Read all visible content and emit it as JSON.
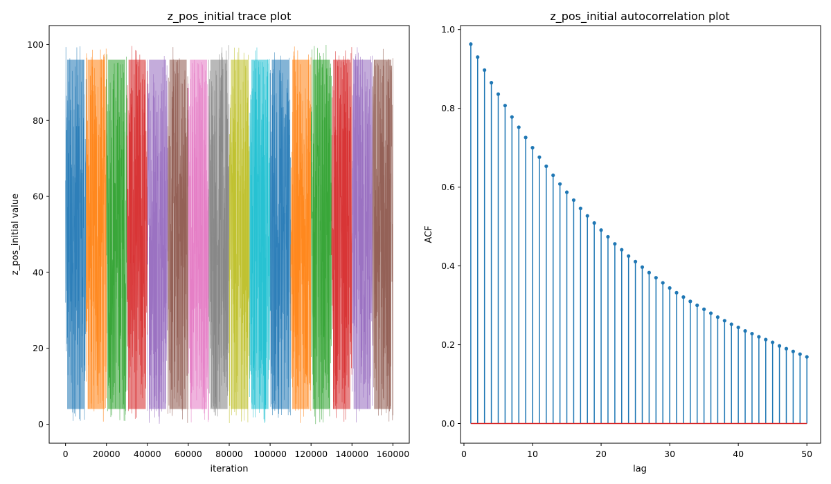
{
  "chart_data": [
    {
      "type": "line",
      "title": "z_pos_initial trace plot",
      "xlabel": "iteration",
      "ylabel": "z_pos_initial value",
      "xlim": [
        -8000,
        168000
      ],
      "ylim": [
        -5,
        105
      ],
      "xticks": [
        0,
        20000,
        40000,
        60000,
        80000,
        100000,
        120000,
        140000,
        160000
      ],
      "xtick_labels": [
        "0",
        "20000",
        "40000",
        "60000",
        "80000",
        "100000",
        "120000",
        "140000",
        "160000"
      ],
      "yticks": [
        0,
        20,
        40,
        60,
        80,
        100
      ],
      "ytick_labels": [
        "0",
        "20",
        "40",
        "60",
        "80",
        "100"
      ],
      "grid": false,
      "series": [
        {
          "x": [
            0,
            10000
          ],
          "y_range": [
            0,
            100
          ],
          "color": "#1f77b4"
        },
        {
          "x": [
            10000,
            20000
          ],
          "y_range": [
            0,
            100
          ],
          "color": "#ff7f0e"
        },
        {
          "x": [
            20000,
            30000
          ],
          "y_range": [
            0,
            100
          ],
          "color": "#2ca02c"
        },
        {
          "x": [
            30000,
            40000
          ],
          "y_range": [
            0,
            100
          ],
          "color": "#d62728"
        },
        {
          "x": [
            40000,
            50000
          ],
          "y_range": [
            0,
            100
          ],
          "color": "#9467bd"
        },
        {
          "x": [
            50000,
            60000
          ],
          "y_range": [
            0,
            100
          ],
          "color": "#8c564b"
        },
        {
          "x": [
            60000,
            70000
          ],
          "y_range": [
            0,
            100
          ],
          "color": "#e377c2"
        },
        {
          "x": [
            70000,
            80000
          ],
          "y_range": [
            0,
            100
          ],
          "color": "#7f7f7f"
        },
        {
          "x": [
            80000,
            90000
          ],
          "y_range": [
            0,
            100
          ],
          "color": "#bcbd22"
        },
        {
          "x": [
            90000,
            100000
          ],
          "y_range": [
            0,
            100
          ],
          "color": "#17becf"
        },
        {
          "x": [
            100000,
            110000
          ],
          "y_range": [
            0,
            100
          ],
          "color": "#1f77b4"
        },
        {
          "x": [
            110000,
            120000
          ],
          "y_range": [
            0,
            100
          ],
          "color": "#ff7f0e"
        },
        {
          "x": [
            120000,
            130000
          ],
          "y_range": [
            0,
            100
          ],
          "color": "#2ca02c"
        },
        {
          "x": [
            130000,
            140000
          ],
          "y_range": [
            0,
            100
          ],
          "color": "#d62728"
        },
        {
          "x": [
            140000,
            150000
          ],
          "y_range": [
            0,
            100
          ],
          "color": "#9467bd"
        },
        {
          "x": [
            150000,
            160000
          ],
          "y_range": [
            0,
            100
          ],
          "color": "#8c564b"
        }
      ]
    },
    {
      "type": "stem",
      "title": "z_pos_initial autocorrelation plot",
      "xlabel": "lag",
      "ylabel": "ACF",
      "xlim": [
        -0.5,
        52
      ],
      "ylim": [
        -0.05,
        1.01
      ],
      "xticks": [
        0,
        10,
        20,
        30,
        40,
        50
      ],
      "xtick_labels": [
        "0",
        "10",
        "20",
        "30",
        "40",
        "50"
      ],
      "yticks": [
        0.0,
        0.2,
        0.4,
        0.6,
        0.8,
        1.0
      ],
      "ytick_labels": [
        "0.0",
        "0.2",
        "0.4",
        "0.6",
        "0.8",
        "1.0"
      ],
      "grid": false,
      "stem_color": "#1f77b4",
      "baseline_color": "#d62728",
      "baseline": 0,
      "x": [
        1,
        2,
        3,
        4,
        5,
        6,
        7,
        8,
        9,
        10,
        11,
        12,
        13,
        14,
        15,
        16,
        17,
        18,
        19,
        20,
        21,
        22,
        23,
        24,
        25,
        26,
        27,
        28,
        29,
        30,
        31,
        32,
        33,
        34,
        35,
        36,
        37,
        38,
        39,
        40,
        41,
        42,
        43,
        44,
        45,
        46,
        47,
        48,
        49,
        50
      ],
      "values": [
        0.963,
        0.93,
        0.897,
        0.865,
        0.836,
        0.807,
        0.778,
        0.752,
        0.726,
        0.7,
        0.676,
        0.653,
        0.63,
        0.608,
        0.587,
        0.567,
        0.546,
        0.527,
        0.509,
        0.491,
        0.474,
        0.456,
        0.441,
        0.425,
        0.411,
        0.397,
        0.383,
        0.37,
        0.357,
        0.344,
        0.332,
        0.321,
        0.31,
        0.3,
        0.29,
        0.28,
        0.27,
        0.261,
        0.252,
        0.244,
        0.235,
        0.228,
        0.22,
        0.213,
        0.206,
        0.197,
        0.19,
        0.183,
        0.176,
        0.169
      ]
    }
  ]
}
